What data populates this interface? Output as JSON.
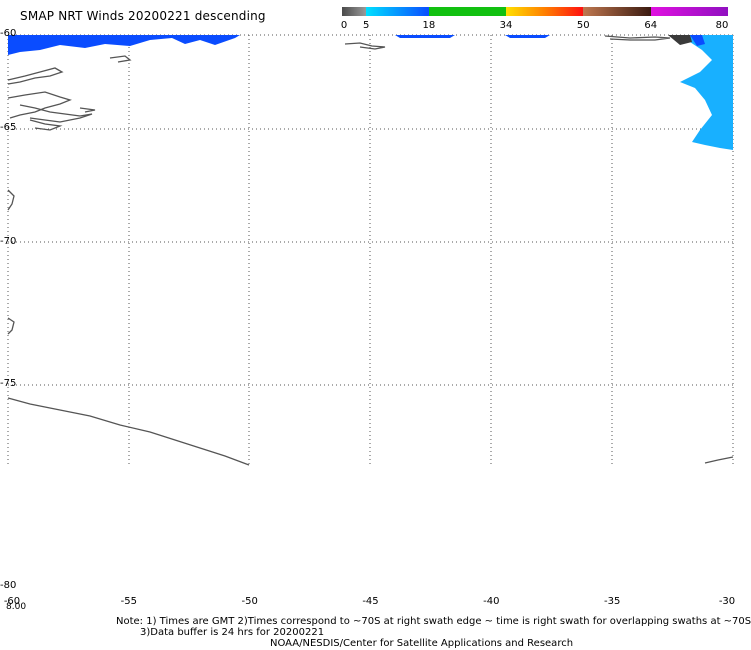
{
  "title": "SMAP NRT Winds  20200221 descending",
  "colorbar": {
    "ticks": [
      "0",
      "5",
      "18",
      "34",
      "50",
      "64",
      "80"
    ],
    "segments": [
      {
        "from": 0,
        "to": 5,
        "color": "#6d6d6d"
      },
      {
        "from": 5,
        "to": 18,
        "color": "#1fb4ff"
      },
      {
        "from": 18,
        "to": 34,
        "color": "#11c010"
      },
      {
        "from": 34,
        "to": 50,
        "color": "#f08010"
      },
      {
        "from": 50,
        "to": 64,
        "color": "#a05a3a"
      },
      {
        "from": 64,
        "to": 80,
        "color": "#c010d0"
      }
    ]
  },
  "axes": {
    "lon_ticks": [
      "-60",
      "-55",
      "-50",
      "-45",
      "-40",
      "-35",
      "-30"
    ],
    "lat_ticks": [
      "-60",
      "-65",
      "-70",
      "-75",
      "-80"
    ],
    "lon_range": [
      -60,
      -30
    ],
    "lat_range": [
      -80,
      -60
    ],
    "time_label": "8.00"
  },
  "notes": {
    "line1": "Note: 1) Times are GMT 2)Times correspond to ~70S at right swath edge ~ time is right swath for overlapping swaths at ~70S",
    "line2": "3)Data buffer is 24 hrs for 20200221",
    "line3": "NOAA/NESDIS/Center for Satellite Applications and Research"
  },
  "colors": {
    "wind_blue_bright": "#0a4cff",
    "wind_blue_light": "#18b0ff",
    "coast": "#555555",
    "grid": "#555555"
  }
}
